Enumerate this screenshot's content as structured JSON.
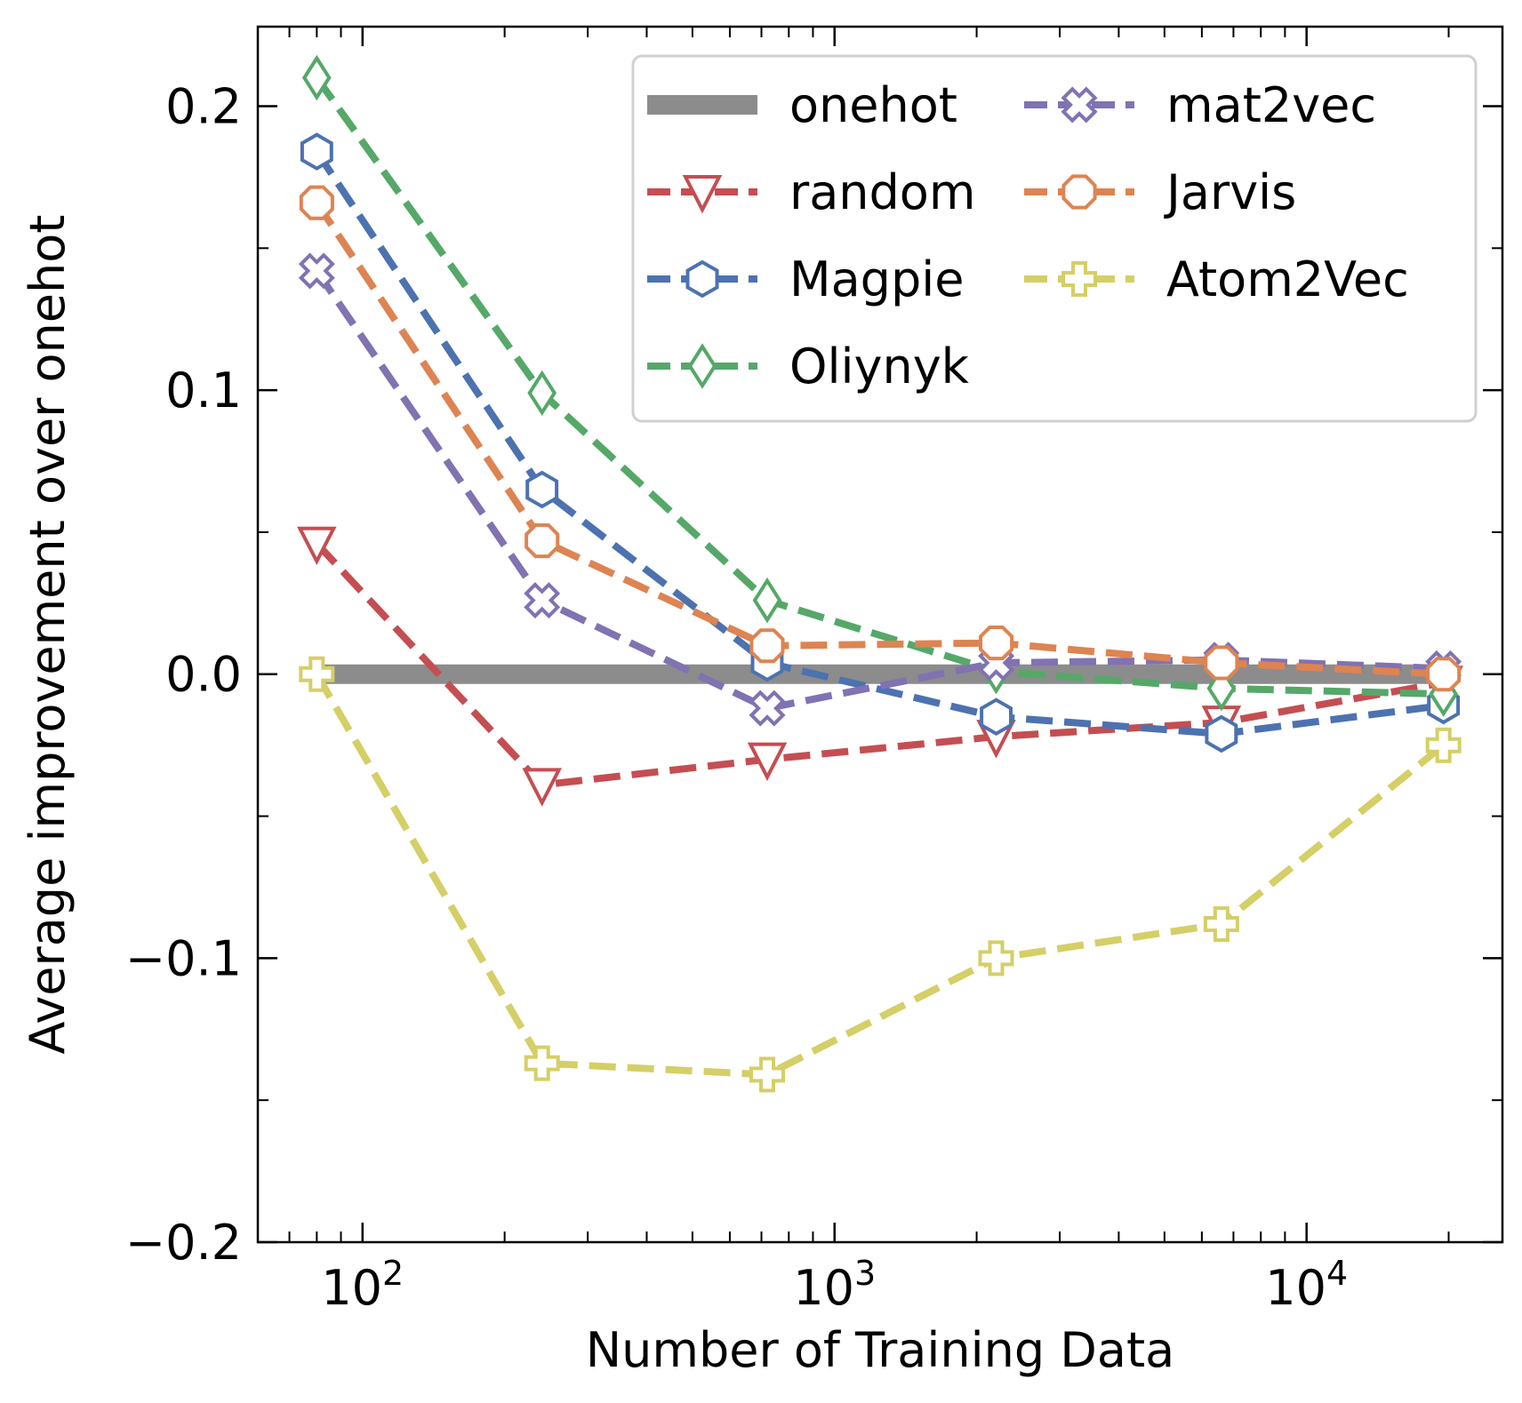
{
  "chart_data": {
    "type": "line",
    "xlabel": "Number of Training Data",
    "ylabel": "Average improvement over onehot",
    "xscale": "log",
    "xlim": [
      60,
      26000
    ],
    "ylim": [
      -0.2,
      0.228
    ],
    "grid": false,
    "legend_placement": "top-right",
    "legend_columns": 2,
    "x_tick_labels": [
      {
        "value": 100,
        "base": "10",
        "exp": "2"
      },
      {
        "value": 1000,
        "base": "10",
        "exp": "3"
      },
      {
        "value": 10000,
        "base": "10",
        "exp": "4"
      }
    ],
    "y_ticks": [
      -0.2,
      -0.1,
      0.0,
      0.1,
      0.2
    ],
    "y_tick_labels": [
      "−0.2",
      "−0.1",
      "0.0",
      "0.1",
      "0.2"
    ],
    "x": [
      80,
      240,
      720,
      2200,
      6600,
      19500
    ],
    "series": [
      {
        "name": "onehot",
        "color": "#8c8c8c",
        "marker": "none",
        "style": "solid",
        "values": [
          0.0,
          0.0,
          0.0,
          0.0,
          0.0,
          0.0
        ]
      },
      {
        "name": "random",
        "color": "#c44e52",
        "marker": "triangle-down",
        "style": "dashed",
        "values": [
          0.046,
          -0.039,
          -0.03,
          -0.022,
          -0.017,
          -0.003
        ]
      },
      {
        "name": "Magpie",
        "color": "#4c72b0",
        "marker": "hexagon",
        "style": "dashed",
        "values": [
          0.184,
          0.065,
          0.004,
          -0.015,
          -0.021,
          -0.011
        ]
      },
      {
        "name": "Oliynyk",
        "color": "#55a868",
        "marker": "thin-diamond",
        "style": "dashed",
        "values": [
          0.21,
          0.099,
          0.026,
          0.001,
          -0.005,
          -0.007
        ]
      },
      {
        "name": "mat2vec",
        "color": "#8172b2",
        "marker": "x-filled",
        "style": "dashed",
        "values": [
          0.142,
          0.026,
          -0.012,
          0.004,
          0.005,
          0.002
        ]
      },
      {
        "name": "Jarvis",
        "color": "#dd8452",
        "marker": "octagon",
        "style": "dashed",
        "values": [
          0.166,
          0.047,
          0.01,
          0.011,
          0.004,
          0.0
        ]
      },
      {
        "name": "Atom2Vec",
        "color": "#d4cf66",
        "marker": "plus-filled",
        "style": "dashed",
        "values": [
          0.0,
          -0.137,
          -0.141,
          -0.1,
          -0.088,
          -0.025
        ]
      }
    ]
  }
}
